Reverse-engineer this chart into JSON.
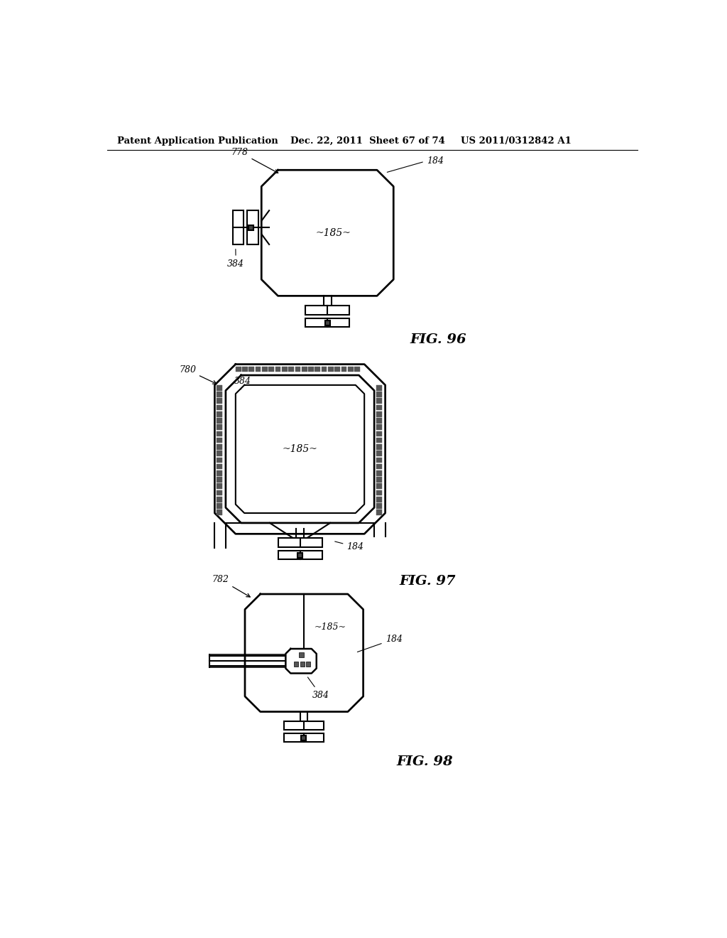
{
  "title_left": "Patent Application Publication",
  "title_mid": "Dec. 22, 2011  Sheet 67 of 74",
  "title_right": "US 2011/0312842 A1",
  "fig96_label": "FIG. 96",
  "fig97_label": "FIG. 97",
  "fig98_label": "FIG. 98",
  "background_color": "#ffffff",
  "line_color": "#000000",
  "line_width": 1.5
}
